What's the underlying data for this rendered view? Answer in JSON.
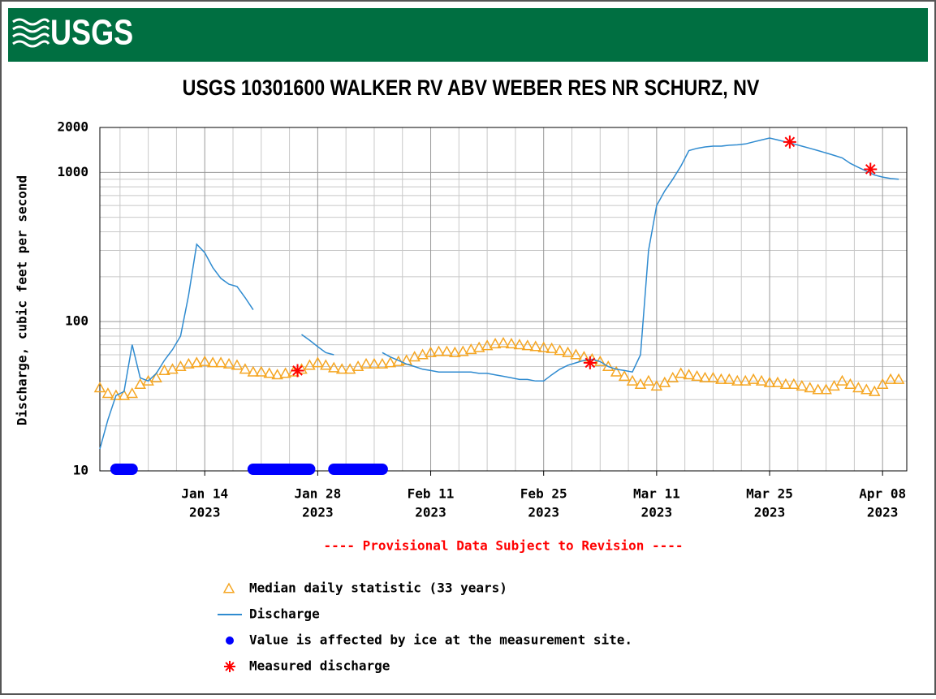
{
  "logo": "USGS",
  "chart_data": {
    "type": "line",
    "title": "USGS 10301600 WALKER RV ABV WEBER RES NR SCHURZ, NV",
    "ylabel": "Discharge, cubic feet per second",
    "note": "---- Provisional Data Subject to Revision ----",
    "log_y": true,
    "grid": true,
    "ylim": [
      10,
      2000
    ],
    "yticks": [
      10,
      100,
      1000,
      2000
    ],
    "y_minor_ticks": [
      20,
      30,
      40,
      50,
      60,
      70,
      80,
      90,
      200,
      300,
      400,
      500,
      600,
      700,
      800,
      900
    ],
    "xlim": [
      "2023-01-01",
      "2023-04-11"
    ],
    "xticks": [
      {
        "value": "2023-01-14",
        "label": [
          "Jan 14",
          "2023"
        ]
      },
      {
        "value": "2023-01-28",
        "label": [
          "Jan 28",
          "2023"
        ]
      },
      {
        "value": "2023-02-11",
        "label": [
          "Feb 11",
          "2023"
        ]
      },
      {
        "value": "2023-02-25",
        "label": [
          "Feb 25",
          "2023"
        ]
      },
      {
        "value": "2023-03-11",
        "label": [
          "Mar 11",
          "2023"
        ]
      },
      {
        "value": "2023-03-25",
        "label": [
          "Mar 25",
          "2023"
        ]
      },
      {
        "value": "2023-04-08",
        "label": [
          "Apr 08",
          "2023"
        ]
      }
    ],
    "x_minor_ticks": [
      "2023-01-03T12:00",
      "2023-01-07",
      "2023-01-10T12:00",
      "2023-01-17T12:00",
      "2023-01-21",
      "2023-01-24T12:00",
      "2023-01-31T12:00",
      "2023-02-04",
      "2023-02-07T12:00",
      "2023-02-14T12:00",
      "2023-02-18",
      "2023-02-21T12:00",
      "2023-02-28T12:00",
      "2023-03-04",
      "2023-03-07T12:00",
      "2023-03-14T12:00",
      "2023-03-18",
      "2023-03-21T12:00",
      "2023-03-28T12:00",
      "2023-04-01",
      "2023-04-04T12:00"
    ],
    "x": [
      "2023-01-01",
      "2023-01-02",
      "2023-01-03",
      "2023-01-04",
      "2023-01-05",
      "2023-01-06",
      "2023-01-07",
      "2023-01-08",
      "2023-01-09",
      "2023-01-10",
      "2023-01-11",
      "2023-01-12",
      "2023-01-13",
      "2023-01-14",
      "2023-01-15",
      "2023-01-16",
      "2023-01-17",
      "2023-01-18",
      "2023-01-19",
      "2023-01-20",
      "2023-01-21",
      "2023-01-22",
      "2023-01-23",
      "2023-01-24",
      "2023-01-25",
      "2023-01-26",
      "2023-01-27",
      "2023-01-28",
      "2023-01-29",
      "2023-01-30",
      "2023-01-31",
      "2023-02-01",
      "2023-02-02",
      "2023-02-03",
      "2023-02-04",
      "2023-02-05",
      "2023-02-06",
      "2023-02-07",
      "2023-02-08",
      "2023-02-09",
      "2023-02-10",
      "2023-02-11",
      "2023-02-12",
      "2023-02-13",
      "2023-02-14",
      "2023-02-15",
      "2023-02-16",
      "2023-02-17",
      "2023-02-18",
      "2023-02-19",
      "2023-02-20",
      "2023-02-21",
      "2023-02-22",
      "2023-02-23",
      "2023-02-24",
      "2023-02-25",
      "2023-02-26",
      "2023-02-27",
      "2023-02-28",
      "2023-03-01",
      "2023-03-02",
      "2023-03-03",
      "2023-03-04",
      "2023-03-05",
      "2023-03-06",
      "2023-03-07",
      "2023-03-08",
      "2023-03-09",
      "2023-03-10",
      "2023-03-11",
      "2023-03-12",
      "2023-03-13",
      "2023-03-14",
      "2023-03-15",
      "2023-03-16",
      "2023-03-17",
      "2023-03-18",
      "2023-03-19",
      "2023-03-20",
      "2023-03-21",
      "2023-03-22",
      "2023-03-23",
      "2023-03-24",
      "2023-03-25",
      "2023-03-26",
      "2023-03-27",
      "2023-03-28",
      "2023-03-29",
      "2023-03-30",
      "2023-03-31",
      "2023-04-01",
      "2023-04-02",
      "2023-04-03",
      "2023-04-04",
      "2023-04-05",
      "2023-04-06",
      "2023-04-07",
      "2023-04-08",
      "2023-04-09",
      "2023-04-10"
    ],
    "series": [
      {
        "name": "Median daily statistic (33 years)",
        "color": "#f5a623",
        "marker": "triangle",
        "values": [
          36,
          33,
          32,
          32,
          33,
          38,
          40,
          42,
          47,
          48,
          50,
          52,
          53,
          54,
          53,
          53,
          52,
          51,
          48,
          46,
          46,
          45,
          44,
          45,
          46,
          48,
          51,
          53,
          51,
          49,
          48,
          48,
          50,
          52,
          52,
          52,
          53,
          54,
          55,
          58,
          60,
          62,
          63,
          63,
          62,
          63,
          65,
          67,
          69,
          71,
          72,
          71,
          70,
          69,
          68,
          67,
          66,
          64,
          62,
          60,
          58,
          56,
          54,
          50,
          46,
          43,
          40,
          38,
          40,
          37,
          39,
          42,
          45,
          44,
          43,
          42,
          42,
          41,
          41,
          40,
          40,
          41,
          40,
          39,
          39,
          38,
          38,
          37,
          36,
          35,
          35,
          37,
          40,
          38,
          36,
          35,
          34,
          38,
          41,
          41
        ]
      },
      {
        "name": "Discharge",
        "color": "#2f8bd0",
        "marker": "line",
        "values": [
          14,
          22,
          32,
          34,
          70,
          42,
          40,
          45,
          55,
          65,
          80,
          150,
          330,
          290,
          230,
          195,
          178,
          172,
          145,
          120,
          null,
          null,
          null,
          null,
          null,
          82,
          75,
          68,
          62,
          60,
          null,
          null,
          null,
          null,
          null,
          62,
          58,
          55,
          52,
          50,
          48,
          47,
          46,
          46,
          46,
          46,
          46,
          45,
          45,
          44,
          43,
          42,
          41,
          41,
          40,
          40,
          44,
          48,
          51,
          53,
          55,
          56,
          54,
          50,
          48,
          47,
          46,
          60,
          300,
          600,
          750,
          900,
          1100,
          1400,
          1450,
          1480,
          1500,
          1500,
          1520,
          1530,
          1550,
          1600,
          1650,
          1700,
          1650,
          1600,
          1550,
          1500,
          1450,
          1400,
          1350,
          1300,
          1250,
          1150,
          1080,
          1020,
          960,
          930,
          910,
          900
        ]
      },
      {
        "name": "Value is affected by ice at the measurement site.",
        "color": "#0000ff",
        "marker": "band",
        "ranges": [
          [
            "2023-01-03",
            "2023-01-05"
          ],
          [
            "2023-01-20",
            "2023-01-27"
          ],
          [
            "2023-01-30",
            "2023-02-05"
          ]
        ]
      },
      {
        "name": "Measured discharge",
        "color": "#ff0000",
        "marker": "star",
        "x": [
          "2023-01-25T12:00",
          "2023-03-02T18:00",
          "2023-03-27T12:00",
          "2023-04-06T12:00"
        ],
        "values": [
          47,
          53,
          1600,
          1050
        ]
      }
    ]
  }
}
